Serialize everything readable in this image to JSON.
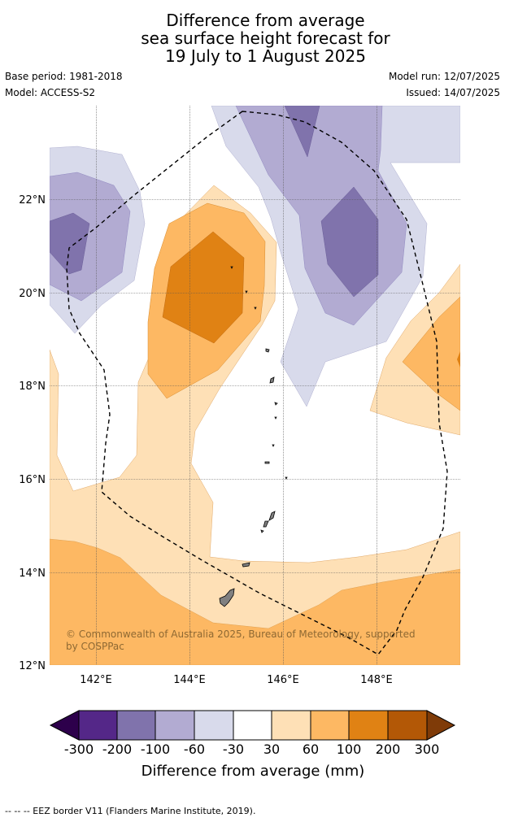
{
  "header": {
    "title_lines": [
      "Difference from average",
      "sea surface height forecast for",
      "19 July to 1 August 2025"
    ],
    "base_period": "Base period: 1981-2018",
    "model": "Model: ACCESS-S2",
    "model_run": "Model run: 12/07/2025",
    "issued": "Issued: 14/07/2025"
  },
  "map": {
    "lat_labels": [
      "22°N",
      "20°N",
      "18°N",
      "16°N",
      "14°N",
      "12°N"
    ],
    "lon_labels": [
      "142°E",
      "144°E",
      "146°E",
      "148°E"
    ],
    "copyright_line1": "© Commonwealth of Australia 2025, Bureau of Meteorology, supported",
    "copyright_line2": "by COSPPac"
  },
  "colorbar": {
    "tick_labels": [
      "-300",
      "-200",
      "-100",
      "-60",
      "-30",
      "30",
      "60",
      "100",
      "200",
      "300"
    ],
    "label": "Difference from average (mm)",
    "colors": [
      "#2d004b",
      "#542788",
      "#8073ac",
      "#b2abd2",
      "#d8daeb",
      "#ffffff",
      "#fee0b6",
      "#fdb863",
      "#e08214",
      "#b35806",
      "#7f3b08"
    ]
  },
  "footer": {
    "text": "-- -- -- EEZ border V11 (Flanders Marine Institute, 2019)."
  }
}
